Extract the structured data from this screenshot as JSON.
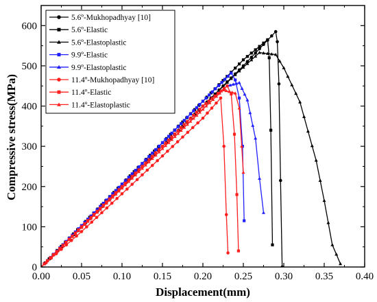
{
  "chart_data": {
    "type": "line",
    "xlabel": "Displacement(mm)",
    "ylabel": "Compressive stress(MPa)",
    "xlim": [
      0,
      0.4
    ],
    "ylim": [
      0,
      650
    ],
    "x_ticks": [
      "0.00",
      "0.05",
      "0.10",
      "0.15",
      "0.20",
      "0.25",
      "0.30",
      "0.35",
      "0.40"
    ],
    "y_ticks": [
      "0",
      "100",
      "200",
      "300",
      "400",
      "500",
      "600"
    ],
    "legend_position": "top-left",
    "series": [
      {
        "name": "5.6º-Mukhopadhyay [10]",
        "color": "#000000",
        "marker": "circle",
        "step": 0.005,
        "x": [
          0,
          0.05,
          0.1,
          0.15,
          0.2,
          0.25,
          0.29,
          0.292,
          0.294,
          0.296,
          0.298
        ],
        "y": [
          0,
          100,
          200,
          300,
          400,
          500,
          585,
          560,
          455,
          215,
          0
        ]
      },
      {
        "name": "5.6º-Elastic",
        "color": "#000000",
        "marker": "square",
        "step": 0.005,
        "x": [
          0,
          0.05,
          0.1,
          0.15,
          0.2,
          0.25,
          0.28,
          0.282,
          0.284,
          0.286
        ],
        "y": [
          0,
          103,
          206,
          309,
          412,
          515,
          565,
          520,
          340,
          55
        ]
      },
      {
        "name": "5.6º-Elastoplastic",
        "color": "#000000",
        "marker": "triangle",
        "step": 0.005,
        "x": [
          0,
          0.05,
          0.1,
          0.15,
          0.2,
          0.24,
          0.27,
          0.29,
          0.3,
          0.32,
          0.34,
          0.35,
          0.36,
          0.37
        ],
        "y": [
          0,
          100,
          200,
          300,
          400,
          478,
          533,
          528,
          495,
          410,
          265,
          165,
          55,
          8
        ]
      },
      {
        "name": "9.9º-Elastic",
        "color": "#1f1fff",
        "marker": "square",
        "step": 0.004,
        "x": [
          0,
          0.05,
          0.1,
          0.15,
          0.2,
          0.235,
          0.24,
          0.245,
          0.249,
          0.251
        ],
        "y": [
          0,
          103,
          206,
          309,
          412,
          482,
          465,
          420,
          300,
          115
        ]
      },
      {
        "name": "9.9º-Elastoplastic",
        "color": "#1f1fff",
        "marker": "triangle",
        "step": 0.004,
        "x": [
          0,
          0.05,
          0.1,
          0.15,
          0.2,
          0.23,
          0.245,
          0.255,
          0.265,
          0.27,
          0.275
        ],
        "y": [
          0,
          100,
          200,
          300,
          400,
          450,
          458,
          415,
          320,
          220,
          135
        ]
      },
      {
        "name": "11.4º-Mukhopadhyay [10]",
        "color": "#ff1f1f",
        "marker": "circle",
        "step": 0.006,
        "x": [
          0,
          0.05,
          0.1,
          0.15,
          0.2,
          0.222,
          0.226,
          0.229,
          0.231
        ],
        "y": [
          0,
          88,
          182,
          276,
          370,
          420,
          300,
          130,
          35
        ]
      },
      {
        "name": "11.4º-Elastic",
        "color": "#ff1f1f",
        "marker": "square",
        "step": 0.004,
        "x": [
          0,
          0.05,
          0.1,
          0.15,
          0.2,
          0.23,
          0.235,
          0.239,
          0.242,
          0.244
        ],
        "y": [
          0,
          100,
          200,
          300,
          400,
          450,
          430,
          330,
          180,
          40
        ]
      },
      {
        "name": "11.4º-Elastoplastic",
        "color": "#ff1f1f",
        "marker": "triangle",
        "step": 0.004,
        "x": [
          0,
          0.05,
          0.1,
          0.15,
          0.2,
          0.225,
          0.24,
          0.245,
          0.248,
          0.25
        ],
        "y": [
          0,
          98,
          196,
          294,
          392,
          440,
          432,
          395,
          300,
          235
        ]
      }
    ]
  }
}
